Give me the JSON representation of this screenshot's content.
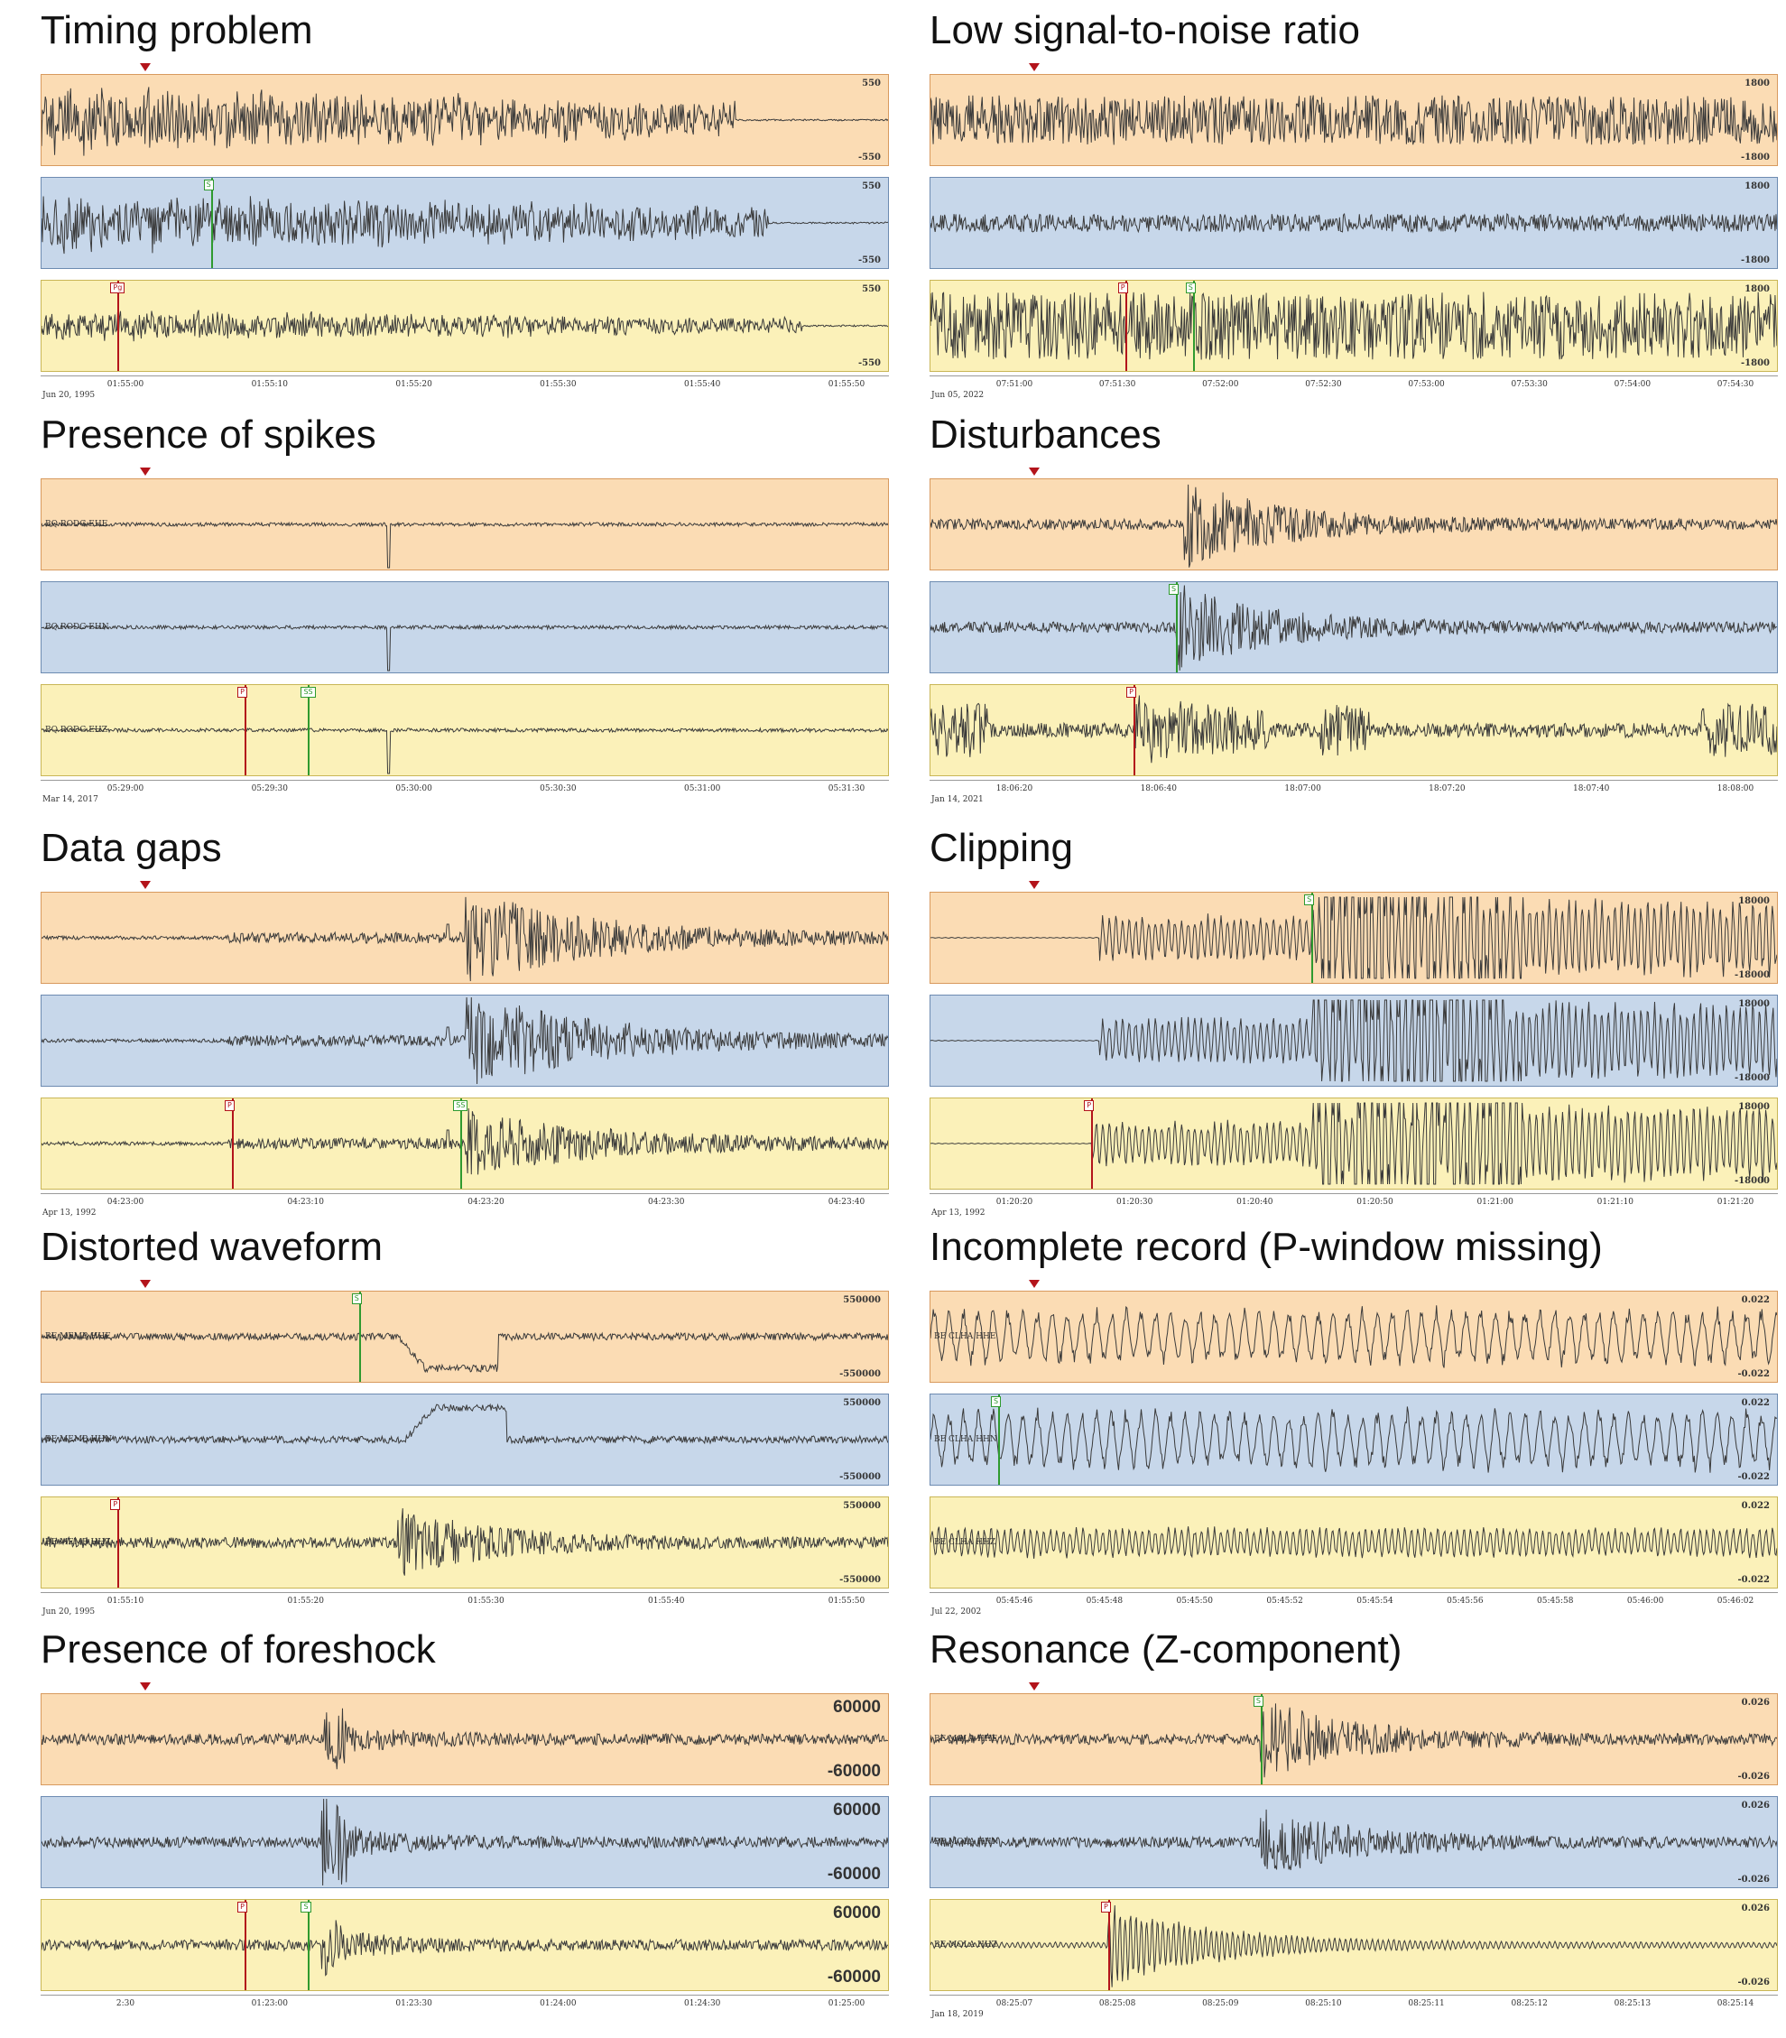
{
  "panels": [
    {
      "title": "Timing problem",
      "amp_top": "550",
      "amp_bot": "-550",
      "big": false,
      "channels": [
        "",
        "",
        ""
      ],
      "traces": [
        {
          "style": "noisy",
          "env": 0.85,
          "end": 0.82
        },
        {
          "style": "noisy",
          "env": 0.75,
          "end": 0.86
        },
        {
          "style": "noisy",
          "env": 0.4,
          "end": 0.9
        }
      ],
      "picks": [
        {
          "trace": 1,
          "type": "s",
          "pos": 0.2,
          "label": "S"
        },
        {
          "trace": 2,
          "type": "p",
          "pos": 0.09,
          "label": "Pg"
        }
      ],
      "ticks": [
        "01:55:00",
        "01:55:10",
        "01:55:20",
        "01:55:30",
        "01:55:40",
        "01:55:50"
      ],
      "date": "Jun 20, 1995"
    },
    {
      "title": "Low signal-to-noise ratio",
      "amp_top": "1800",
      "amp_bot": "-1800",
      "big": false,
      "channels": [
        "",
        "",
        ""
      ],
      "traces": [
        {
          "style": "band",
          "env": 0.55
        },
        {
          "style": "band",
          "env": 0.2
        },
        {
          "style": "band",
          "env": 0.75
        }
      ],
      "picks": [
        {
          "trace": 2,
          "type": "p",
          "pos": 0.23,
          "label": "P"
        },
        {
          "trace": 2,
          "type": "s",
          "pos": 0.31,
          "label": "S"
        }
      ],
      "ticks": [
        "07:51:00",
        "07:51:30",
        "07:52:00",
        "07:52:30",
        "07:53:00",
        "07:53:30",
        "07:54:00",
        "07:54:30"
      ],
      "date": "Jun 05, 2022"
    },
    {
      "title": "Presence of spikes",
      "amp_top": "",
      "amp_bot": "",
      "big": false,
      "channels": [
        "BQ RODG EHE",
        "BQ RODG EHN",
        "BQ RODG EHZ"
      ],
      "traces": [
        {
          "style": "spike",
          "env": 0.9,
          "spike": 0.41
        },
        {
          "style": "spike",
          "env": 0.9,
          "spike": 0.41
        },
        {
          "style": "spike",
          "env": 0.9,
          "spike": 0.41
        }
      ],
      "picks": [
        {
          "trace": 2,
          "type": "p",
          "pos": 0.24,
          "label": "P"
        },
        {
          "trace": 2,
          "type": "s",
          "pos": 0.315,
          "label": "SS"
        }
      ],
      "ticks": [
        "05:29:00",
        "05:29:30",
        "05:30:00",
        "05:30:30",
        "05:31:00",
        "05:31:30"
      ],
      "date": "Mar 14, 2017"
    },
    {
      "title": "Disturbances",
      "amp_top": "",
      "amp_bot": "",
      "big": false,
      "channels": [
        "",
        "",
        ""
      ],
      "traces": [
        {
          "style": "event",
          "env": 0.45,
          "at": 0.3
        },
        {
          "style": "event",
          "env": 0.45,
          "at": 0.29
        },
        {
          "style": "disturb",
          "env": 0.45,
          "at": 0.24
        }
      ],
      "picks": [
        {
          "trace": 1,
          "type": "s",
          "pos": 0.29,
          "label": "S"
        },
        {
          "trace": 2,
          "type": "p",
          "pos": 0.24,
          "label": "P"
        }
      ],
      "ticks": [
        "18:06:20",
        "18:06:40",
        "18:07:00",
        "18:07:20",
        "18:07:40",
        "18:08:00"
      ],
      "date": "Jan 14, 2021"
    },
    {
      "title": "Data gaps",
      "amp_top": "",
      "amp_bot": "",
      "big": false,
      "channels": [
        "",
        "",
        ""
      ],
      "traces": [
        {
          "style": "gap",
          "env": 0.5,
          "at": 0.5
        },
        {
          "style": "gap",
          "env": 0.55,
          "at": 0.5
        },
        {
          "style": "gap",
          "env": 0.35,
          "at": 0.5
        }
      ],
      "picks": [
        {
          "trace": 2,
          "type": "p",
          "pos": 0.225,
          "label": "P"
        },
        {
          "trace": 2,
          "type": "s",
          "pos": 0.495,
          "label": "SS"
        }
      ],
      "ticks": [
        "04:23:00",
        "04:23:10",
        "04:23:20",
        "04:23:30",
        "04:23:40"
      ],
      "date": "Apr 13, 1992"
    },
    {
      "title": "Clipping",
      "amp_top": "18000",
      "amp_bot": "-18000",
      "big": false,
      "channels": [
        "",
        "",
        ""
      ],
      "traces": [
        {
          "style": "clip",
          "env": 0.95,
          "at": 0.2
        },
        {
          "style": "clip",
          "env": 0.95,
          "at": 0.2
        },
        {
          "style": "clip",
          "env": 0.95,
          "at": 0.19
        }
      ],
      "picks": [
        {
          "trace": 0,
          "type": "s",
          "pos": 0.45,
          "label": "S"
        },
        {
          "trace": 2,
          "type": "p",
          "pos": 0.19,
          "label": "P"
        }
      ],
      "ticks": [
        "01:20:20",
        "01:20:30",
        "01:20:40",
        "01:20:50",
        "01:21:00",
        "01:21:10",
        "01:21:20"
      ],
      "date": "Apr 13, 1992"
    },
    {
      "title": "Distorted waveform",
      "amp_top": "550000",
      "amp_bot": "-550000",
      "big": false,
      "channels": [
        "BE MEMB HHE",
        "BE MEMB HHN",
        "BE MEMB HHZ"
      ],
      "traces": [
        {
          "style": "step",
          "env": 0.5,
          "at": 0.42,
          "sign": -1
        },
        {
          "style": "step",
          "env": 0.5,
          "at": 0.43,
          "sign": 1
        },
        {
          "style": "event",
          "env": 0.35,
          "at": 0.42
        }
      ],
      "picks": [
        {
          "trace": 0,
          "type": "s",
          "pos": 0.375,
          "label": "S"
        },
        {
          "trace": 2,
          "type": "p",
          "pos": 0.09,
          "label": "P"
        }
      ],
      "ticks": [
        "01:55:10",
        "01:55:20",
        "01:55:30",
        "01:55:40",
        "01:55:50"
      ],
      "date": "Jun 20, 1995"
    },
    {
      "title": "Incomplete record (P-window missing)",
      "amp_top": "0.022",
      "amp_bot": "-0.022",
      "big": false,
      "channels": [
        "BE CLHA HHE",
        "BE CLHA HHN",
        "BE CLHA HHZ"
      ],
      "traces": [
        {
          "style": "long",
          "env": 0.65
        },
        {
          "style": "long",
          "env": 0.7
        },
        {
          "style": "long",
          "env": 0.35
        }
      ],
      "picks": [
        {
          "trace": 1,
          "type": "s",
          "pos": 0.08,
          "label": "S"
        }
      ],
      "ticks": [
        "05:45:46",
        "05:45:48",
        "05:45:50",
        "05:45:52",
        "05:45:54",
        "05:45:56",
        "05:45:58",
        "05:46:00",
        "05:46:02"
      ],
      "date": "Jul 22, 2002"
    },
    {
      "title": "Presence of foreshock",
      "amp_top": "60000",
      "amp_bot": "-60000",
      "big": true,
      "channels": [
        "",
        "",
        ""
      ],
      "traces": [
        {
          "style": "fore",
          "env": 0.35,
          "at": 0.33
        },
        {
          "style": "fore",
          "env": 0.5,
          "at": 0.33
        },
        {
          "style": "fore",
          "env": 0.35,
          "at": 0.33
        }
      ],
      "picks": [
        {
          "trace": 2,
          "type": "p",
          "pos": 0.24,
          "label": "P"
        },
        {
          "trace": 2,
          "type": "s",
          "pos": 0.315,
          "label": "S"
        }
      ],
      "ticks": [
        "2:30",
        "01:23:00",
        "01:23:30",
        "01:24:00",
        "01:24:30",
        "01:25:00"
      ],
      "date": ""
    },
    {
      "title": "Resonance (Z-component)",
      "amp_top": "0.026",
      "amp_bot": "-0.026",
      "big": false,
      "channels": [
        "BE MOLA HHE",
        "BE MOLA HHN",
        "BE MOLA HHZ"
      ],
      "traces": [
        {
          "style": "event",
          "env": 0.4,
          "at": 0.39
        },
        {
          "style": "event",
          "env": 0.35,
          "at": 0.39
        },
        {
          "style": "reson",
          "env": 0.8,
          "at": 0.21
        }
      ],
      "picks": [
        {
          "trace": 0,
          "type": "s",
          "pos": 0.39,
          "label": "S"
        },
        {
          "trace": 2,
          "type": "p",
          "pos": 0.21,
          "label": "P"
        }
      ],
      "ticks": [
        "08:25:07",
        "08:25:08",
        "08:25:09",
        "08:25:10",
        "08:25:11",
        "08:25:12",
        "08:25:13",
        "08:25:14"
      ],
      "date": "Jan 18, 2019"
    }
  ]
}
